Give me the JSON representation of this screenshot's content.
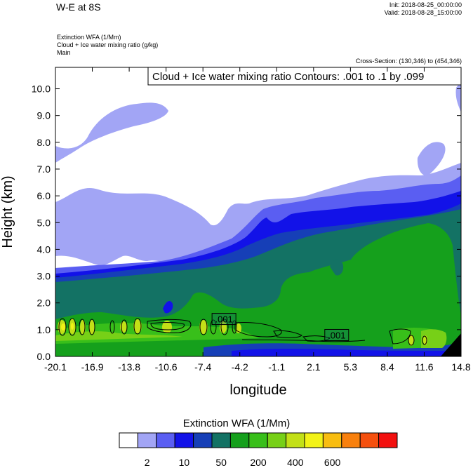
{
  "header": {
    "title": "W-E at 8S",
    "init": "Init: 2018-08-25_00:00:00",
    "valid": "Valid: 2018-08-28_15:00:00",
    "var_lines": [
      "Extinction WFA   (1/Mm)",
      "Cloud + Ice water mixing ratio   (g/kg)",
      "Main"
    ],
    "cross_section": "Cross-Section: (130,346) to (454,346)"
  },
  "chart_data": {
    "type": "heatmap",
    "title": "W-E at 8S",
    "xlabel": "longitude",
    "ylabel": "Height (km)",
    "xlim": [
      -20.1,
      14.8
    ],
    "ylim": [
      0.0,
      10.8
    ],
    "xticks": [
      "-20.1",
      "-16.9",
      "-13.8",
      "-10.6",
      "-7.4",
      "-4.2",
      "-1.1",
      "2.1",
      "5.3",
      "8.4",
      "11.6",
      "14.8"
    ],
    "yticks": [
      "0.0",
      "1.0",
      "2.0",
      "3.0",
      "4.0",
      "5.0",
      "6.0",
      "7.0",
      "8.0",
      "9.0",
      "10.0"
    ],
    "ytick_values": [
      0,
      1,
      2,
      3,
      4,
      5,
      6,
      7,
      8,
      9,
      10
    ],
    "contour_label": "Cloud + Ice water mixing ratio Contours: .001 to .1 by .099",
    "contour_line_labels": [
      {
        "text": ".001",
        "x": -5.6,
        "y": 1.4
      },
      {
        "text": ".001",
        "x": 4.1,
        "y": 0.8
      }
    ],
    "colorbar": {
      "title": "Extinction WFA  (1/Mm)",
      "colors": [
        "#ffffff",
        "#a2a5f5",
        "#5a5ef2",
        "#1212e8",
        "#163fb7",
        "#137264",
        "#15a01c",
        "#38bf1a",
        "#77d017",
        "#c3e017",
        "#f2f217",
        "#f8bd10",
        "#f8800d",
        "#f5500e",
        "#f2100f"
      ],
      "labels": [
        "2",
        "10",
        "50",
        "200",
        "400",
        "600"
      ]
    }
  }
}
